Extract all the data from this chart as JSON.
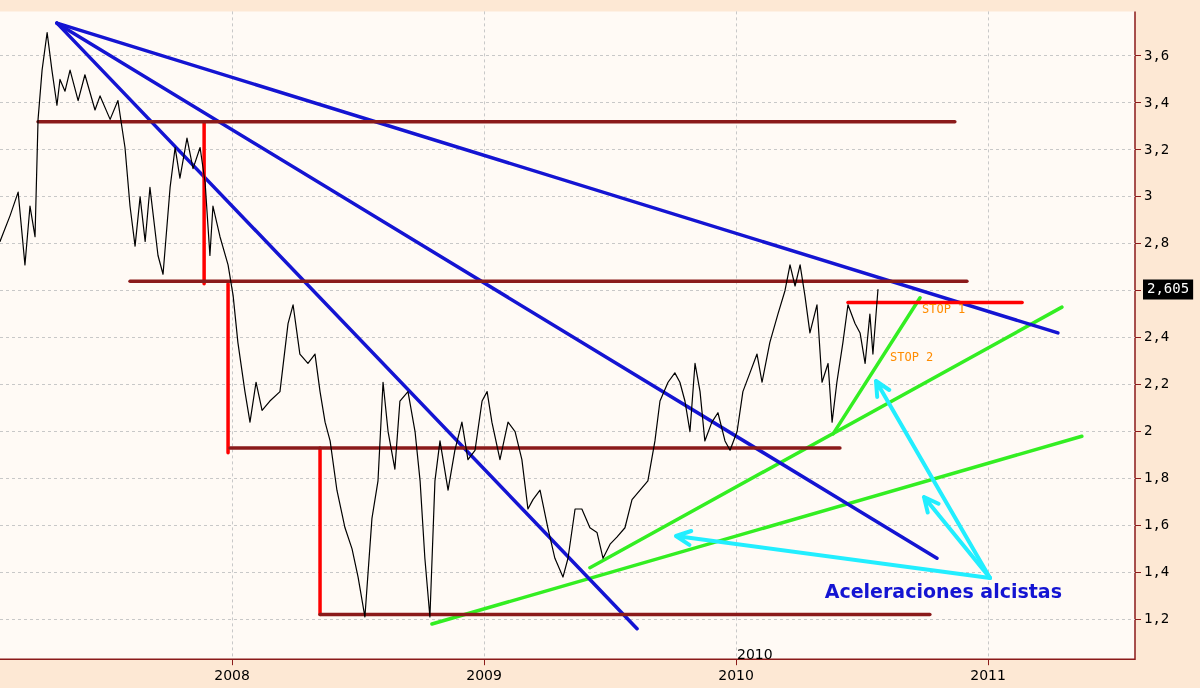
{
  "chart_data": {
    "type": "line",
    "xlim": [
      2007.079,
      2011.583
    ],
    "ylim": [
      1.03,
      3.79
    ],
    "xticks": [
      2008,
      2009,
      2010,
      2011
    ],
    "yticks": [
      {
        "value": 1.2,
        "label": "1,2"
      },
      {
        "value": 1.4,
        "label": "1,4"
      },
      {
        "value": 1.6,
        "label": "1,6"
      },
      {
        "value": 1.8,
        "label": "1,8"
      },
      {
        "value": 2,
        "label": "2"
      },
      {
        "value": 2.2,
        "label": "2,2"
      },
      {
        "value": 2.4,
        "label": "2,4"
      },
      {
        "value": 2.6,
        "label": null
      },
      {
        "value": 2.8,
        "label": "2,8"
      },
      {
        "value": 3,
        "label": "3"
      },
      {
        "value": 3.2,
        "label": "3,2"
      },
      {
        "value": 3.4,
        "label": "3,4"
      },
      {
        "value": 3.6,
        "label": "3,6"
      }
    ],
    "grid": true,
    "legend": false,
    "marker": "none",
    "line_style": "solid",
    "series": [
      {
        "type": "line",
        "color": "#000000",
        "x": [
          2007.079,
          2007.119,
          2007.151,
          2007.178,
          2007.198,
          2007.218,
          2007.23,
          2007.246,
          2007.266,
          2007.285,
          2007.305,
          2007.317,
          2007.337,
          2007.357,
          2007.389,
          2007.416,
          2007.456,
          2007.476,
          2007.516,
          2007.547,
          2007.575,
          2007.595,
          2007.615,
          2007.635,
          2007.655,
          2007.674,
          2007.706,
          2007.726,
          2007.754,
          2007.774,
          2007.793,
          2007.821,
          2007.845,
          2007.873,
          2007.893,
          2007.912,
          2007.924,
          2007.952,
          2007.984,
          2008.004,
          2008.023,
          2008.051,
          2008.071,
          2008.095,
          2008.119,
          2008.15,
          2008.19,
          2008.222,
          2008.242,
          2008.269,
          2008.301,
          2008.329,
          2008.349,
          2008.369,
          2008.389,
          2008.416,
          2008.448,
          2008.476,
          2008.5,
          2008.527,
          2008.555,
          2008.579,
          2008.599,
          2008.619,
          2008.646,
          2008.666,
          2008.698,
          2008.726,
          2008.746,
          2008.765,
          2008.785,
          2008.805,
          2008.825,
          2008.857,
          2008.884,
          2008.912,
          2008.936,
          2008.964,
          2008.992,
          2009.012,
          2009.031,
          2009.063,
          2009.095,
          2009.123,
          2009.15,
          2009.174,
          2009.194,
          2009.222,
          2009.253,
          2009.281,
          2009.313,
          2009.333,
          2009.361,
          2009.388,
          2009.42,
          2009.448,
          2009.472,
          2009.5,
          2009.527,
          2009.559,
          2009.587,
          2009.619,
          2009.65,
          2009.678,
          2009.698,
          2009.73,
          2009.757,
          2009.777,
          2009.797,
          2009.817,
          2009.837,
          2009.857,
          2009.876,
          2009.904,
          2009.928,
          2009.956,
          2009.976,
          2010.004,
          2010.027,
          2010.055,
          2010.083,
          2010.103,
          2010.134,
          2010.166,
          2010.194,
          2010.214,
          2010.234,
          2010.254,
          2010.273,
          2010.293,
          2010.321,
          2010.341,
          2010.365,
          2010.381,
          2010.4,
          2010.424,
          2010.444,
          2010.472,
          2010.492,
          2010.512,
          2010.531,
          2010.543,
          2010.563
        ],
        "values": [
          2.81,
          2.92,
          3.02,
          2.71,
          2.96,
          2.83,
          3.33,
          3.54,
          3.7,
          3.54,
          3.39,
          3.5,
          3.45,
          3.54,
          3.41,
          3.52,
          3.37,
          3.43,
          3.33,
          3.41,
          3.21,
          2.96,
          2.79,
          3.0,
          2.81,
          3.04,
          2.75,
          2.67,
          3.04,
          3.21,
          3.08,
          3.25,
          3.12,
          3.21,
          3.06,
          2.75,
          2.96,
          2.83,
          2.71,
          2.58,
          2.38,
          2.17,
          2.04,
          2.21,
          2.09,
          2.13,
          2.17,
          2.46,
          2.54,
          2.33,
          2.29,
          2.33,
          2.17,
          2.04,
          1.96,
          1.75,
          1.59,
          1.5,
          1.38,
          1.21,
          1.63,
          1.79,
          2.21,
          2.0,
          1.84,
          2.13,
          2.17,
          2.0,
          1.79,
          1.46,
          1.21,
          1.79,
          1.96,
          1.75,
          1.92,
          2.04,
          1.88,
          1.92,
          2.13,
          2.17,
          2.04,
          1.88,
          2.04,
          2.0,
          1.88,
          1.67,
          1.71,
          1.75,
          1.59,
          1.46,
          1.38,
          1.46,
          1.67,
          1.67,
          1.59,
          1.57,
          1.46,
          1.52,
          1.55,
          1.59,
          1.71,
          1.75,
          1.79,
          1.96,
          2.13,
          2.21,
          2.25,
          2.21,
          2.13,
          2.0,
          2.29,
          2.17,
          1.96,
          2.04,
          2.08,
          1.96,
          1.92,
          2.0,
          2.17,
          2.25,
          2.33,
          2.21,
          2.38,
          2.5,
          2.6,
          2.71,
          2.62,
          2.71,
          2.58,
          2.42,
          2.54,
          2.21,
          2.29,
          2.04,
          2.21,
          2.38,
          2.54,
          2.46,
          2.42,
          2.29,
          2.5,
          2.33,
          2.605
        ]
      },
      {
        "type": "line",
        "color": "#8b1a1a",
        "x": [
          2007.23,
          2010.868
        ],
        "values": [
          3.32,
          3.32
        ]
      },
      {
        "type": "line",
        "color": "#8b1a1a",
        "x": [
          2007.595,
          2010.916
        ],
        "values": [
          2.64,
          2.64
        ]
      },
      {
        "type": "line",
        "color": "#8b1a1a",
        "x": [
          2007.992,
          2010.412
        ],
        "values": [
          1.93,
          1.93
        ]
      },
      {
        "type": "line",
        "color": "#8b1a1a",
        "x": [
          2008.349,
          2010.769
        ],
        "values": [
          1.22,
          1.22
        ]
      },
      {
        "type": "line",
        "color": "#ff0000",
        "x": [
          2007.889,
          2007.889
        ],
        "values": [
          3.32,
          2.63
        ]
      },
      {
        "type": "line",
        "color": "#ff0000",
        "x": [
          2007.984,
          2007.984
        ],
        "values": [
          2.63,
          1.91
        ]
      },
      {
        "type": "line",
        "color": "#ff0000",
        "x": [
          2008.349,
          2008.349
        ],
        "values": [
          1.93,
          1.22
        ]
      },
      {
        "type": "line",
        "color": "#ff0000",
        "x": [
          2010.444,
          2011.135
        ],
        "values": [
          2.55,
          2.55
        ]
      },
      {
        "type": "line",
        "color": "#1414d2",
        "x": [
          2007.305,
          2011.277
        ],
        "values": [
          3.74,
          2.42
        ]
      },
      {
        "type": "line",
        "color": "#1414d2",
        "x": [
          2007.305,
          2010.797
        ],
        "values": [
          3.74,
          1.46
        ]
      },
      {
        "type": "line",
        "color": "#1414d2",
        "x": [
          2007.305,
          2009.607
        ],
        "values": [
          3.74,
          1.16
        ]
      },
      {
        "type": "line",
        "color": "#33ee22",
        "x": [
          2008.793,
          2011.372
        ],
        "values": [
          1.18,
          1.98
        ]
      },
      {
        "type": "line",
        "color": "#33ee22",
        "x": [
          2009.42,
          2011.293
        ],
        "values": [
          1.42,
          2.53
        ]
      },
      {
        "type": "line",
        "color": "#33ee22",
        "x": [
          2010.385,
          2010.73
        ],
        "values": [
          1.99,
          2.57
        ]
      }
    ],
    "annotations": [
      "STOP 1",
      "STOP 2",
      "Aceleraciones alcistas",
      "2010",
      "2,605"
    ]
  }
}
